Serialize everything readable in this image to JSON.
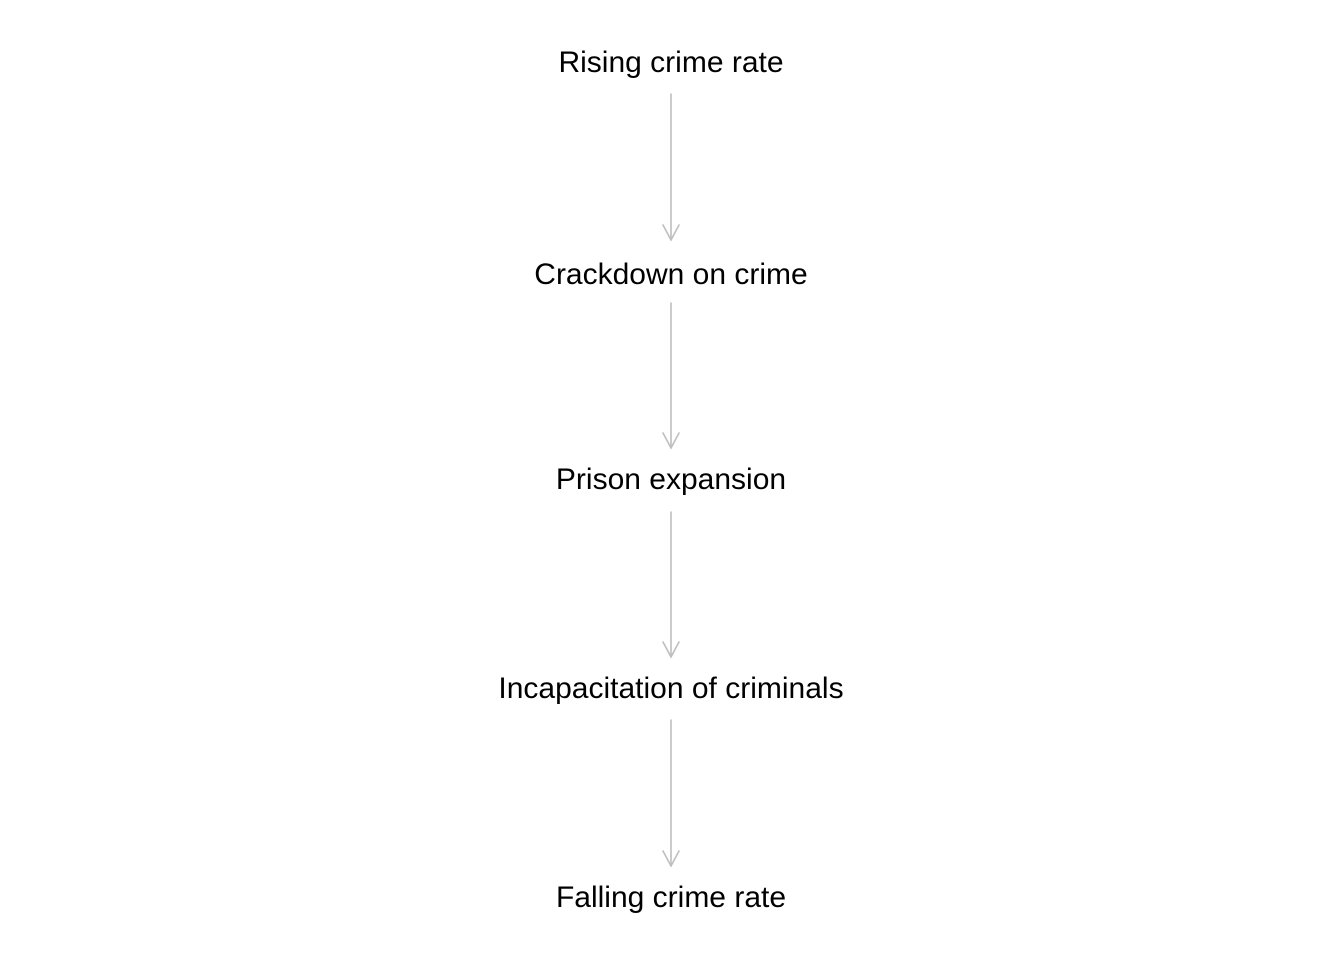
{
  "diagram": {
    "nodes": [
      {
        "id": "rising",
        "label": "Rising crime rate"
      },
      {
        "id": "crackdown",
        "label": "Crackdown on crime"
      },
      {
        "id": "prison",
        "label": "Prison expansion"
      },
      {
        "id": "incapacitation",
        "label": "Incapacitation of criminals"
      },
      {
        "id": "falling",
        "label": "Falling crime rate"
      }
    ],
    "edges": [
      {
        "from": "rising",
        "to": "crackdown"
      },
      {
        "from": "crackdown",
        "to": "prison"
      },
      {
        "from": "prison",
        "to": "incapacitation"
      },
      {
        "from": "incapacitation",
        "to": "falling"
      }
    ],
    "edge_color": "#bebebe",
    "text_color": "#000000"
  }
}
